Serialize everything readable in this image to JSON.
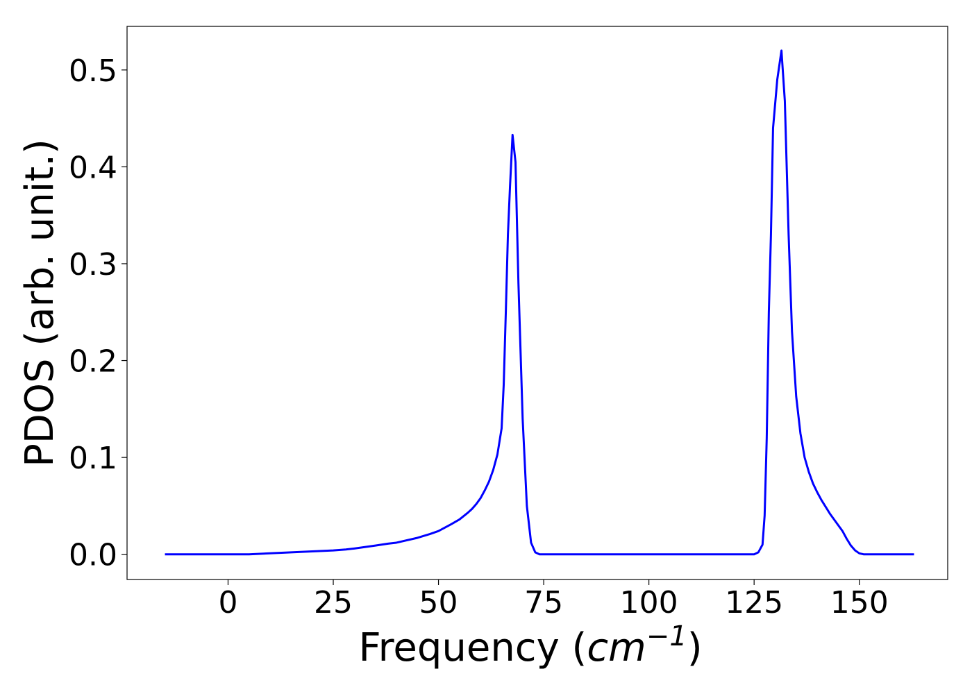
{
  "chart_data": {
    "type": "line",
    "xlabel": {
      "prefix": "Frequency (",
      "unit": "cm",
      "exponent": "−1",
      "suffix": ")"
    },
    "ylabel": "PDOS (arb. unit.)",
    "xlim": [
      -24,
      171
    ],
    "ylim": [
      -0.026,
      0.545
    ],
    "xticks": [
      0,
      25,
      50,
      75,
      100,
      125,
      150
    ],
    "xtick_labels": [
      "0",
      "25",
      "50",
      "75",
      "100",
      "125",
      "150"
    ],
    "yticks": [
      0.0,
      0.1,
      0.2,
      0.3,
      0.4,
      0.5
    ],
    "ytick_labels": [
      "0.0",
      "0.1",
      "0.2",
      "0.3",
      "0.4",
      "0.5"
    ],
    "grid": false,
    "series": [
      {
        "color": "#0000ff",
        "x": [
          -15,
          0,
          5,
          10,
          15,
          20,
          25,
          28,
          30,
          35,
          38,
          40,
          45,
          48,
          50,
          53,
          55,
          57,
          58,
          59,
          60,
          61,
          62,
          63,
          64,
          65,
          65.5,
          66,
          66.5,
          67,
          67.6,
          68.3,
          69,
          70,
          71,
          72,
          73,
          74,
          75,
          80,
          90,
          100,
          110,
          120,
          125,
          126,
          127,
          127.5,
          128,
          128.5,
          129,
          129.5,
          130.5,
          131.5,
          132.3,
          133.2,
          134,
          135,
          136,
          137,
          138,
          139,
          140,
          141,
          142,
          143,
          144,
          145,
          146,
          147,
          148,
          149,
          150,
          151,
          152,
          155,
          163
        ],
        "y": [
          0.0,
          0.0,
          0.0,
          0.001,
          0.002,
          0.003,
          0.004,
          0.005,
          0.006,
          0.009,
          0.011,
          0.012,
          0.017,
          0.021,
          0.024,
          0.031,
          0.036,
          0.043,
          0.047,
          0.052,
          0.058,
          0.066,
          0.075,
          0.087,
          0.103,
          0.13,
          0.175,
          0.25,
          0.33,
          0.38,
          0.433,
          0.405,
          0.28,
          0.14,
          0.05,
          0.012,
          0.002,
          0.0,
          0.0,
          0.0,
          0.0,
          0.0,
          0.0,
          0.0,
          0.0,
          0.002,
          0.01,
          0.04,
          0.12,
          0.25,
          0.33,
          0.44,
          0.49,
          0.52,
          0.468,
          0.33,
          0.23,
          0.163,
          0.125,
          0.1,
          0.085,
          0.073,
          0.064,
          0.056,
          0.049,
          0.042,
          0.036,
          0.03,
          0.024,
          0.016,
          0.009,
          0.004,
          0.001,
          0.0,
          0.0,
          0.0,
          0.0
        ]
      }
    ]
  }
}
